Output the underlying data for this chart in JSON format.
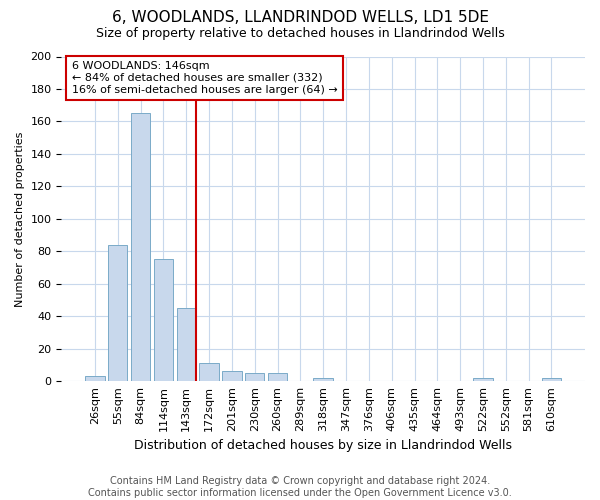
{
  "title1": "6, WOODLANDS, LLANDRINDOD WELLS, LD1 5DE",
  "title2": "Size of property relative to detached houses in Llandrindod Wells",
  "xlabel": "Distribution of detached houses by size in Llandrindod Wells",
  "ylabel": "Number of detached properties",
  "categories": [
    "26sqm",
    "55sqm",
    "84sqm",
    "114sqm",
    "143sqm",
    "172sqm",
    "201sqm",
    "230sqm",
    "260sqm",
    "289sqm",
    "318sqm",
    "347sqm",
    "376sqm",
    "406sqm",
    "435sqm",
    "464sqm",
    "493sqm",
    "522sqm",
    "552sqm",
    "581sqm",
    "610sqm"
  ],
  "values": [
    3,
    84,
    165,
    75,
    45,
    11,
    6,
    5,
    5,
    0,
    2,
    0,
    0,
    0,
    0,
    0,
    0,
    2,
    0,
    0,
    2
  ],
  "bar_color": "#c8d8ec",
  "bar_edge_color": "#7aaac8",
  "vline_x_index": 4.43,
  "vline_color": "#cc0000",
  "annotation_text": "6 WOODLANDS: 146sqm\n← 84% of detached houses are smaller (332)\n16% of semi-detached houses are larger (64) →",
  "annotation_box_color": "#ffffff",
  "annotation_box_edge_color": "#cc0000",
  "ylim": [
    0,
    200
  ],
  "yticks": [
    0,
    20,
    40,
    60,
    80,
    100,
    120,
    140,
    160,
    180,
    200
  ],
  "background_color": "#ffffff",
  "grid_color": "#c8d8ec",
  "footer_text": "Contains HM Land Registry data © Crown copyright and database right 2024.\nContains public sector information licensed under the Open Government Licence v3.0.",
  "title1_fontsize": 11,
  "title2_fontsize": 9,
  "xlabel_fontsize": 9,
  "ylabel_fontsize": 8,
  "tick_fontsize": 8,
  "annotation_fontsize": 8,
  "footer_fontsize": 7
}
